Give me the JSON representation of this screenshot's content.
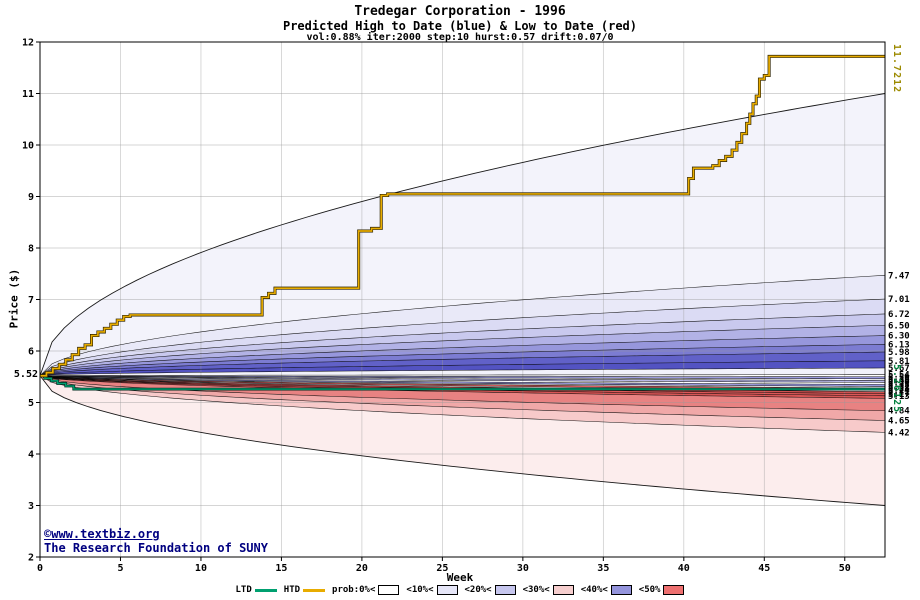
{
  "title": {
    "line1": "Tredegar Corporation - 1996",
    "line2": "Predicted High to Date (blue) &  Low to Date (red)",
    "line3": "vol:0.88% iter:2000 step:10 hurst:0.57 drift:0.07/0"
  },
  "footer": {
    "link": "©www.textbiz.org",
    "org": "The Research Foundation of SUNY"
  },
  "chart_data": {
    "type": "fan-projection",
    "title": "Tredegar Corporation - 1996",
    "subtitle": "Predicted High to Date (blue) & Low to Date (red)",
    "params": {
      "vol": "0.88%",
      "iter": 2000,
      "step": 10,
      "hurst": 0.57,
      "drift": "0.07/0"
    },
    "xlabel": "Week",
    "ylabel": "Price ($)",
    "xlim": [
      0,
      52.5
    ],
    "ylim": [
      2,
      12
    ],
    "x_ticks": [
      0,
      5,
      10,
      15,
      20,
      25,
      30,
      35,
      40,
      45,
      50
    ],
    "y_ticks": [
      2,
      3,
      4,
      5,
      6,
      7,
      8,
      9,
      10,
      11,
      12
    ],
    "grid": true,
    "legend_position": "bottom",
    "start_price": 5.52,
    "start_label": "5.52",
    "htd_final_label": "11.7212",
    "ltd_final_label": "5.26125",
    "fan": {
      "shape_exponent": 0.5,
      "boundary_ends": [
        11.0,
        7.47,
        7.01,
        6.72,
        6.5,
        6.3,
        6.13,
        5.98,
        5.81,
        5.67,
        5.54,
        5.5,
        5.46,
        5.43,
        5.39,
        5.35,
        5.31,
        5.28,
        5.24,
        5.21,
        5.17,
        5.13,
        5.08,
        4.84,
        4.65,
        4.42,
        3.0
      ],
      "band_fills": [
        "#f3f3fb",
        "#e9e9f8",
        "#dbdbf4",
        "#c9c9ee",
        "#b2b2e6",
        "#9797dc",
        "#7c7cd2",
        "#6161c8",
        "#5353c2",
        "#f2f2fb",
        "#ffffff",
        "#9a9ade",
        "#ffffff",
        "#b8b8e8",
        "#ffffff",
        "#9a9ade",
        "#ffffff",
        "#e06060",
        "#ffffff",
        "#d05050",
        "#dd5858",
        "#d85555",
        "#e88282",
        "#f0a8a8",
        "#f7caca",
        "#fceded"
      ]
    },
    "right_axis_labels": [
      {
        "text": "7.47",
        "value": 7.47
      },
      {
        "text": "7.01",
        "value": 7.01
      },
      {
        "text": "6.72",
        "value": 6.72
      },
      {
        "text": "6.50",
        "value": 6.5
      },
      {
        "text": "6.30",
        "value": 6.3
      },
      {
        "text": "6.13",
        "value": 6.13
      },
      {
        "text": "5.98",
        "value": 5.98
      },
      {
        "text": "5.81",
        "value": 5.81
      },
      {
        "text": "5.67",
        "value": 5.67
      },
      {
        "text": "5.54",
        "value": 5.54
      },
      {
        "text": "5.50",
        "value": 5.5
      },
      {
        "text": "5.46",
        "value": 5.46
      },
      {
        "text": "5.43",
        "value": 5.43
      },
      {
        "text": "5.39",
        "value": 5.39
      },
      {
        "text": "5.35",
        "value": 5.35
      },
      {
        "text": "5.31",
        "value": 5.31
      },
      {
        "text": "5.28",
        "value": 5.28
      },
      {
        "text": "5.24",
        "value": 5.24
      },
      {
        "text": "5.21",
        "value": 5.21
      },
      {
        "text": "5.17",
        "value": 5.17
      },
      {
        "text": "5.13",
        "value": 5.13
      },
      {
        "text": "4.84",
        "value": 4.84
      },
      {
        "text": "4.65",
        "value": 4.65
      },
      {
        "text": "4.42",
        "value": 4.42
      }
    ],
    "htd_steps": [
      [
        0,
        5.52
      ],
      [
        0.4,
        5.58
      ],
      [
        0.8,
        5.66
      ],
      [
        1.2,
        5.74
      ],
      [
        1.6,
        5.83
      ],
      [
        2.0,
        5.93
      ],
      [
        2.4,
        6.05
      ],
      [
        2.8,
        6.12
      ],
      [
        3.2,
        6.3
      ],
      [
        3.6,
        6.37
      ],
      [
        4.0,
        6.44
      ],
      [
        4.4,
        6.52
      ],
      [
        4.8,
        6.6
      ],
      [
        5.2,
        6.67
      ],
      [
        5.6,
        6.7
      ],
      [
        13.4,
        6.7
      ],
      [
        13.8,
        7.04
      ],
      [
        14.2,
        7.12
      ],
      [
        14.6,
        7.22
      ],
      [
        19.4,
        7.22
      ],
      [
        19.8,
        8.33
      ],
      [
        20.6,
        8.38
      ],
      [
        21.2,
        9.02
      ],
      [
        21.6,
        9.05
      ],
      [
        40.0,
        9.05
      ],
      [
        40.3,
        9.35
      ],
      [
        40.6,
        9.55
      ],
      [
        41.8,
        9.6
      ],
      [
        42.2,
        9.7
      ],
      [
        42.6,
        9.78
      ],
      [
        43.0,
        9.9
      ],
      [
        43.3,
        10.05
      ],
      [
        43.6,
        10.22
      ],
      [
        43.9,
        10.42
      ],
      [
        44.1,
        10.6
      ],
      [
        44.3,
        10.8
      ],
      [
        44.5,
        10.95
      ],
      [
        44.7,
        11.28
      ],
      [
        45.0,
        11.35
      ],
      [
        45.3,
        11.72
      ],
      [
        52.5,
        11.72
      ]
    ],
    "ltd_steps": [
      [
        0,
        5.52
      ],
      [
        0.3,
        5.47
      ],
      [
        0.7,
        5.42
      ],
      [
        1.1,
        5.37
      ],
      [
        1.6,
        5.32
      ],
      [
        2.1,
        5.26
      ],
      [
        52.5,
        5.26
      ]
    ],
    "colors": {
      "htd": "#e8ac00",
      "htd_edge": "#2a2000",
      "ltd": "#00a070",
      "ltd_edge": "#002c20",
      "grid": "#9a9a9a",
      "axis": "#000000",
      "htd_label": "#9c8a00",
      "ltd_label": "#00803d",
      "footer": "#000080"
    }
  },
  "legend": {
    "items": [
      {
        "label": "LTD",
        "swatch": "line",
        "color": "#00a070"
      },
      {
        "label": "HTD",
        "swatch": "line",
        "color": "#e8ac00"
      },
      {
        "label": "prob:0%<",
        "swatch": "box",
        "color": "#ffffff"
      },
      {
        "label": "<10%<",
        "swatch": "box",
        "color": "#e6e6f8"
      },
      {
        "label": "<20%<",
        "swatch": "box",
        "color": "#c6c6ee"
      },
      {
        "label": "<30%<",
        "swatch": "box",
        "color": "#f6cece"
      },
      {
        "label": "<40%<",
        "swatch": "box",
        "color": "#9494dc"
      },
      {
        "label": "<50%",
        "swatch": "box",
        "color": "#ee7070"
      }
    ]
  }
}
